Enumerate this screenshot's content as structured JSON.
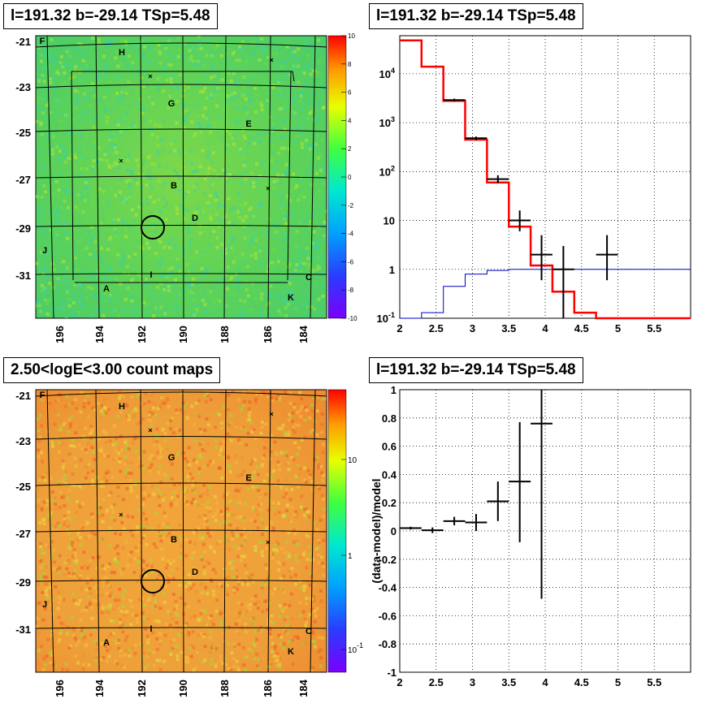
{
  "panels": {
    "tl": {
      "title": "l=191.32 b=-29.14 TSp=5.48"
    },
    "tr": {
      "title": "l=191.32 b=-29.14 TSp=5.48"
    },
    "bl": {
      "title": "2.50<logE<3.00 count maps"
    },
    "br": {
      "title": "l=191.32 b=-29.14 TSp=5.48"
    }
  },
  "chart_data": [
    {
      "type": "heatmap",
      "title": "l=191.32 b=-29.14 TSp=5.48",
      "x_ticks": [
        "196",
        "194",
        "192",
        "190",
        "188",
        "186",
        "184"
      ],
      "y_ticks": [
        "-21",
        "-23",
        "-25",
        "-27",
        "-29",
        "-31"
      ],
      "colorbar_ticks": [
        "10",
        "8",
        "6",
        "4",
        "2",
        "0",
        "-2",
        "-4",
        "-6",
        "-8",
        "-10"
      ],
      "colorbar_range": [
        -10,
        10
      ],
      "labels": [
        "F",
        "H",
        "G",
        "E",
        "B",
        "D",
        "J",
        "I",
        "A",
        "C",
        "K"
      ],
      "grid": true
    },
    {
      "type": "line",
      "title": "l=191.32 b=-29.14 TSp=5.48",
      "scale_y": "log",
      "xlim": [
        2,
        6
      ],
      "ylim": [
        0.1,
        60000
      ],
      "x_ticks": [
        "2",
        "2.5",
        "3",
        "3.5",
        "4",
        "4.5",
        "5",
        "5.5"
      ],
      "y_ticks": [
        "10^-1",
        "1",
        "10",
        "10^2",
        "10^3",
        "10^4"
      ],
      "model_total_red": {
        "edges": [
          2.0,
          2.3,
          2.6,
          2.9,
          3.2,
          3.5,
          3.8,
          4.1,
          4.4,
          4.7,
          5.0,
          6.0
        ],
        "values": [
          48000,
          14000,
          2800,
          450,
          60,
          7.5,
          1.2,
          0.35,
          0.13,
          0.1,
          0.1
        ]
      },
      "model_component_blue": {
        "edges": [
          2.0,
          2.3,
          2.6,
          2.9,
          3.2,
          3.5,
          3.8,
          4.1,
          4.4,
          4.7,
          5.0,
          6.0
        ],
        "values": [
          0.1,
          0.13,
          0.45,
          0.8,
          0.95,
          1.0,
          1.0,
          1.0,
          1.0,
          1.0,
          1.0
        ]
      },
      "data_points": [
        {
          "x": 2.75,
          "y": 2900,
          "xerr": 0.15,
          "ylo": 2700,
          "yhi": 3100
        },
        {
          "x": 3.05,
          "y": 480,
          "xerr": 0.15,
          "ylo": 440,
          "yhi": 520
        },
        {
          "x": 3.35,
          "y": 70,
          "xerr": 0.15,
          "ylo": 58,
          "yhi": 84
        },
        {
          "x": 3.65,
          "y": 10,
          "xerr": 0.15,
          "ylo": 6,
          "yhi": 16
        },
        {
          "x": 3.95,
          "y": 2,
          "xerr": 0.15,
          "ylo": 0.6,
          "yhi": 5
        },
        {
          "x": 4.25,
          "y": 1,
          "xerr": 0.15,
          "ylo": 0.1,
          "yhi": 3
        },
        {
          "x": 4.85,
          "y": 2,
          "xerr": 0.15,
          "ylo": 0.6,
          "yhi": 5
        }
      ],
      "grid": true
    },
    {
      "type": "heatmap",
      "title": "2.50<logE<3.00 count maps",
      "x_ticks": [
        "196",
        "194",
        "192",
        "190",
        "188",
        "186",
        "184"
      ],
      "y_ticks": [
        "-21",
        "-23",
        "-25",
        "-27",
        "-29",
        "-31"
      ],
      "colorbar_ticks": [
        "10",
        "1",
        "10^-1"
      ],
      "colorbar_scale": "log",
      "labels": [
        "F",
        "H",
        "G",
        "E",
        "B",
        "D",
        "J",
        "I",
        "A",
        "C",
        "K"
      ],
      "grid": true
    },
    {
      "type": "scatter",
      "title": "l=191.32 b=-29.14 TSp=5.48",
      "ylabel": "(data-model)/model",
      "xlim": [
        2,
        6
      ],
      "ylim": [
        -1,
        1
      ],
      "x_ticks": [
        "2",
        "2.5",
        "3",
        "3.5",
        "4",
        "4.5",
        "5",
        "5.5"
      ],
      "y_ticks": [
        "-1",
        "-0.8",
        "-0.6",
        "-0.4",
        "-0.2",
        "0",
        "0.2",
        "0.4",
        "0.6",
        "0.8",
        "1"
      ],
      "points": [
        {
          "x": 2.15,
          "y": 0.02,
          "xerr": 0.15,
          "yerr": 0.01
        },
        {
          "x": 2.45,
          "y": 0.005,
          "xerr": 0.15,
          "yerr": 0.02
        },
        {
          "x": 2.75,
          "y": 0.07,
          "xerr": 0.15,
          "yerr": 0.03
        },
        {
          "x": 3.05,
          "y": 0.06,
          "xerr": 0.15,
          "yerr": 0.06
        },
        {
          "x": 3.35,
          "y": 0.21,
          "xerr": 0.15,
          "yerr": 0.14
        },
        {
          "x": 3.65,
          "y": 0.35,
          "xerr": 0.15,
          "ylo": -0.08,
          "yhi": 0.77
        },
        {
          "x": 3.95,
          "y": 0.76,
          "xerr": 0.15,
          "ylo": -0.48,
          "yhi": 1.0
        }
      ],
      "grid": true
    }
  ]
}
